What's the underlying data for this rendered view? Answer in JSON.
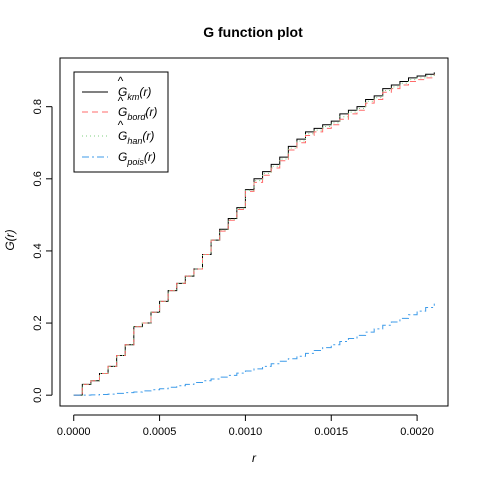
{
  "chart_data": {
    "type": "line",
    "title": "G function plot",
    "xlabel": "r",
    "ylabel": "G(r)",
    "xlim": [
      -8e-05,
      0.00218
    ],
    "ylim": [
      -0.03,
      0.935
    ],
    "xticks": [
      0.0,
      0.0005,
      0.001,
      0.0015,
      0.002
    ],
    "xtick_labels": [
      "0.0000",
      "0.0005",
      "0.0010",
      "0.0015",
      "0.0020"
    ],
    "yticks": [
      0.0,
      0.2,
      0.4,
      0.6,
      0.8
    ],
    "ytick_labels": [
      "0.0",
      "0.2",
      "0.4",
      "0.6",
      "0.8"
    ],
    "grid": false,
    "legend_position": "top-left",
    "x": [
      0.0,
      5e-05,
      0.0001,
      0.00015,
      0.0002,
      0.00025,
      0.0003,
      0.00035,
      0.0004,
      0.00045,
      0.0005,
      0.00055,
      0.0006,
      0.00065,
      0.0007,
      0.00075,
      0.0008,
      0.00085,
      0.0009,
      0.00095,
      0.001,
      0.00105,
      0.0011,
      0.00115,
      0.0012,
      0.00125,
      0.0013,
      0.00135,
      0.0014,
      0.00145,
      0.0015,
      0.00155,
      0.0016,
      0.00165,
      0.0017,
      0.00175,
      0.0018,
      0.00185,
      0.0019,
      0.00195,
      0.002,
      0.00205,
      0.0021
    ],
    "series": [
      {
        "name": "km",
        "color": "#000000",
        "dash": "",
        "values": [
          0.0,
          0.03,
          0.04,
          0.06,
          0.08,
          0.11,
          0.14,
          0.19,
          0.2,
          0.23,
          0.26,
          0.29,
          0.31,
          0.33,
          0.35,
          0.39,
          0.43,
          0.46,
          0.49,
          0.52,
          0.57,
          0.6,
          0.62,
          0.64,
          0.66,
          0.69,
          0.71,
          0.73,
          0.74,
          0.75,
          0.76,
          0.78,
          0.79,
          0.8,
          0.82,
          0.83,
          0.85,
          0.86,
          0.87,
          0.88,
          0.885,
          0.89,
          0.895
        ]
      },
      {
        "name": "bord",
        "color": "#ff6b6b",
        "dash": "6,4",
        "values": [
          0.0,
          0.03,
          0.04,
          0.06,
          0.08,
          0.11,
          0.14,
          0.19,
          0.2,
          0.23,
          0.26,
          0.29,
          0.31,
          0.33,
          0.35,
          0.39,
          0.43,
          0.455,
          0.485,
          0.515,
          0.565,
          0.59,
          0.61,
          0.63,
          0.65,
          0.68,
          0.7,
          0.72,
          0.73,
          0.74,
          0.75,
          0.765,
          0.78,
          0.79,
          0.81,
          0.82,
          0.84,
          0.85,
          0.86,
          0.87,
          0.875,
          0.88,
          0.89
        ]
      },
      {
        "name": "han",
        "color": "#7fcf7f",
        "dash": "1,3",
        "values": [
          0.0,
          0.03,
          0.04,
          0.06,
          0.08,
          0.11,
          0.14,
          0.19,
          0.2,
          0.23,
          0.26,
          0.29,
          0.31,
          0.33,
          0.35,
          0.39,
          0.43,
          0.458,
          0.488,
          0.518,
          0.568,
          0.595,
          0.615,
          0.635,
          0.655,
          0.685,
          0.705,
          0.725,
          0.735,
          0.745,
          0.755,
          0.772,
          0.785,
          0.795,
          0.815,
          0.825,
          0.845,
          0.855,
          0.865,
          0.875,
          0.88,
          0.885,
          0.892
        ]
      },
      {
        "name": "pois",
        "color": "#3d9be9",
        "dash": "7,3,2,3",
        "values": [
          0.0,
          0.0,
          0.001,
          0.002,
          0.003,
          0.005,
          0.007,
          0.009,
          0.012,
          0.015,
          0.018,
          0.022,
          0.026,
          0.03,
          0.035,
          0.04,
          0.045,
          0.05,
          0.055,
          0.061,
          0.067,
          0.073,
          0.08,
          0.087,
          0.094,
          0.101,
          0.108,
          0.116,
          0.124,
          0.132,
          0.14,
          0.149,
          0.157,
          0.166,
          0.175,
          0.184,
          0.194,
          0.203,
          0.213,
          0.223,
          0.233,
          0.243,
          0.254
        ]
      }
    ]
  }
}
